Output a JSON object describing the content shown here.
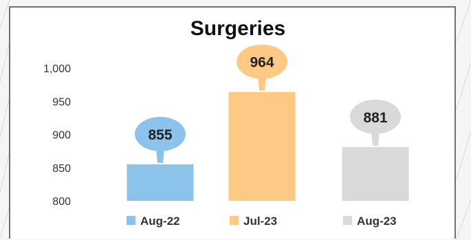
{
  "chart_data": {
    "type": "bar",
    "title": "Surgeries",
    "xlabel": "",
    "ylabel": "",
    "categories": [
      "Aug-22",
      "Jul-23",
      "Aug-23"
    ],
    "values": [
      855,
      964,
      881
    ],
    "data_labels": [
      "855",
      "964",
      "881"
    ],
    "colors": [
      "#8cc3ea",
      "#fdc984",
      "#d9d9d9"
    ],
    "bubble_colors": [
      "#8cc3ea",
      "#fdc984",
      "#d9d9d9"
    ],
    "ylim": [
      800,
      1000
    ],
    "yticks": [
      800,
      850,
      900,
      950,
      1000
    ],
    "ytick_labels": [
      "800",
      "850",
      "900",
      "950",
      "1,000"
    ],
    "grid": false,
    "legend_position": "bottom"
  }
}
